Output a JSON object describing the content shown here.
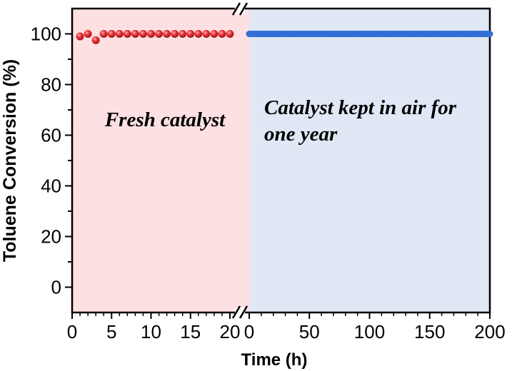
{
  "chart_data": {
    "type": "scatter",
    "ylabel": "Toluene Conversion (%)",
    "xlabel": "Time (h)",
    "ylim": [
      -10,
      110
    ],
    "yticks": [
      "0",
      "20",
      "40",
      "60",
      "80",
      "100"
    ],
    "broken_x_axis": true,
    "colors": {
      "left_bg": "#fde0e1",
      "right_bg": "#dfe8f4",
      "left_series": "#e8343a",
      "right_series": "#2f6fd6"
    },
    "panels": [
      {
        "xlim": [
          0,
          20
        ],
        "xticks": [
          "0",
          "5",
          "10",
          "15",
          "20"
        ],
        "annotation": "Fresh catalyst",
        "series": [
          {
            "x": [
              1,
              2,
              3,
              4,
              5,
              6,
              7,
              8,
              9,
              10,
              11,
              12,
              13,
              14,
              15,
              16,
              17,
              18,
              19,
              20
            ],
            "y": [
              99,
              100,
              97.5,
              100,
              100,
              100,
              100,
              100,
              100,
              100,
              100,
              100,
              100,
              100,
              100,
              100,
              100,
              100,
              100,
              100
            ]
          }
        ]
      },
      {
        "xlim": [
          0,
          200
        ],
        "xticks": [
          "0",
          "50",
          "100",
          "150",
          "200"
        ],
        "annotation_lines": [
          "Catalyst kept in air for",
          "one year"
        ],
        "series": [
          {
            "x_start": 0,
            "x_end": 200,
            "count": 200,
            "y": 100
          }
        ]
      }
    ]
  }
}
